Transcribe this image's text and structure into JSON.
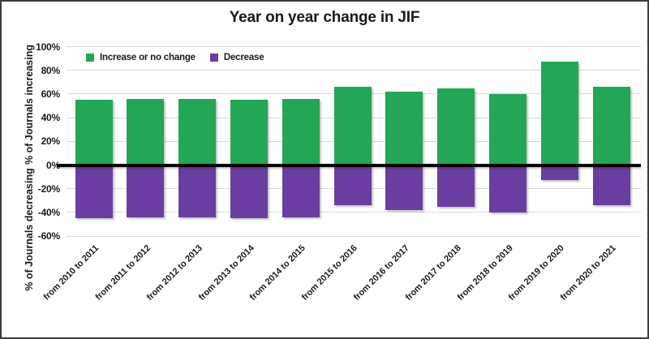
{
  "chart_data": {
    "type": "bar",
    "title": "Year on year change in JIF",
    "categories": [
      "from 2010 to 2011",
      "from 2011 to 2012",
      "from 2012 to 2013",
      "from 2013 to 2014",
      "from 2014 to 2015",
      "from 2015 to 2016",
      "from 2016 to 2017",
      "from 2017 to 2018",
      "from 2018 to 2019",
      "from 2019 to 2020",
      "from 2020 to 2021"
    ],
    "series": [
      {
        "name": "Increase or no change",
        "color": "#23a655",
        "values": [
          55,
          56,
          56,
          55,
          56,
          66,
          62,
          65,
          60,
          87,
          66
        ]
      },
      {
        "name": "Decrease",
        "color": "#6a3ea0",
        "values": [
          -45,
          -44,
          -44,
          -45,
          -44,
          -34,
          -38,
          -35,
          -40,
          -13,
          -34
        ]
      }
    ],
    "ylabel_positive": "% of Journals increasing",
    "ylabel_negative": "% of Journals decreasing",
    "yticks": [
      100,
      80,
      60,
      40,
      20,
      0,
      -20,
      -40,
      -60
    ],
    "ytick_labels": [
      "100%",
      "80%",
      "60%",
      "40%",
      "20%",
      "0%",
      "-20%",
      "-40%",
      "-60%"
    ],
    "ylim": [
      -60,
      100
    ],
    "grid": true,
    "zero_line": true,
    "legend_position": "top-left-inside",
    "colors": {
      "gridline": "#d9d9d9",
      "zero_line": "#000000",
      "text": "#1a1a1a",
      "background": "#ffffff"
    }
  }
}
